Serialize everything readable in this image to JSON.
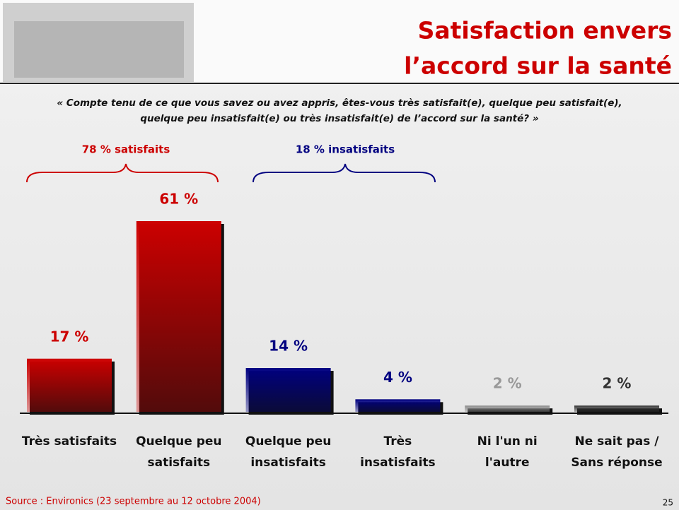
{
  "header": {
    "title_lines": [
      "Satisfaction envers",
      "l’accord sur la santé"
    ]
  },
  "question_lines": [
    "« Compte tenu de ce que vous savez ou avez appris, êtes-vous très satisfait(e), quelque peu satisfait(e),",
    "quelque peu insatisfait(e) ou très insatisfait(e) de l’accord sur la santé? »"
  ],
  "chart_data": {
    "type": "bar",
    "categories": [
      "Très satisfaits",
      "Quelque peu\nsatisfaits",
      "Quelque peu\ninsatisfaits",
      "Très\ninsatisfaits",
      "Ni l'un ni\nl'autre",
      "Ne sait pas /\nSans réponse"
    ],
    "values": [
      17,
      61,
      14,
      4,
      2,
      2
    ],
    "value_labels": [
      "17 %",
      "61 %",
      "14 %",
      "4 %",
      "2 %",
      "2 %"
    ],
    "colors": [
      "#cc0000",
      "#cc0000",
      "#000080",
      "#000080",
      "#8c8c8c",
      "#333333"
    ],
    "label_colors": [
      "#cc0000",
      "#cc0000",
      "#000080",
      "#000080",
      "#999999",
      "#333333"
    ],
    "annotations": [
      {
        "text": "78 % satisfaits",
        "color": "#cc0000"
      },
      {
        "text": "18 % insatisfaits",
        "color": "#000080"
      }
    ]
  },
  "footer": {
    "source": "Source : Environics (23 septembre au 12 octobre 2004)",
    "page": "25"
  }
}
